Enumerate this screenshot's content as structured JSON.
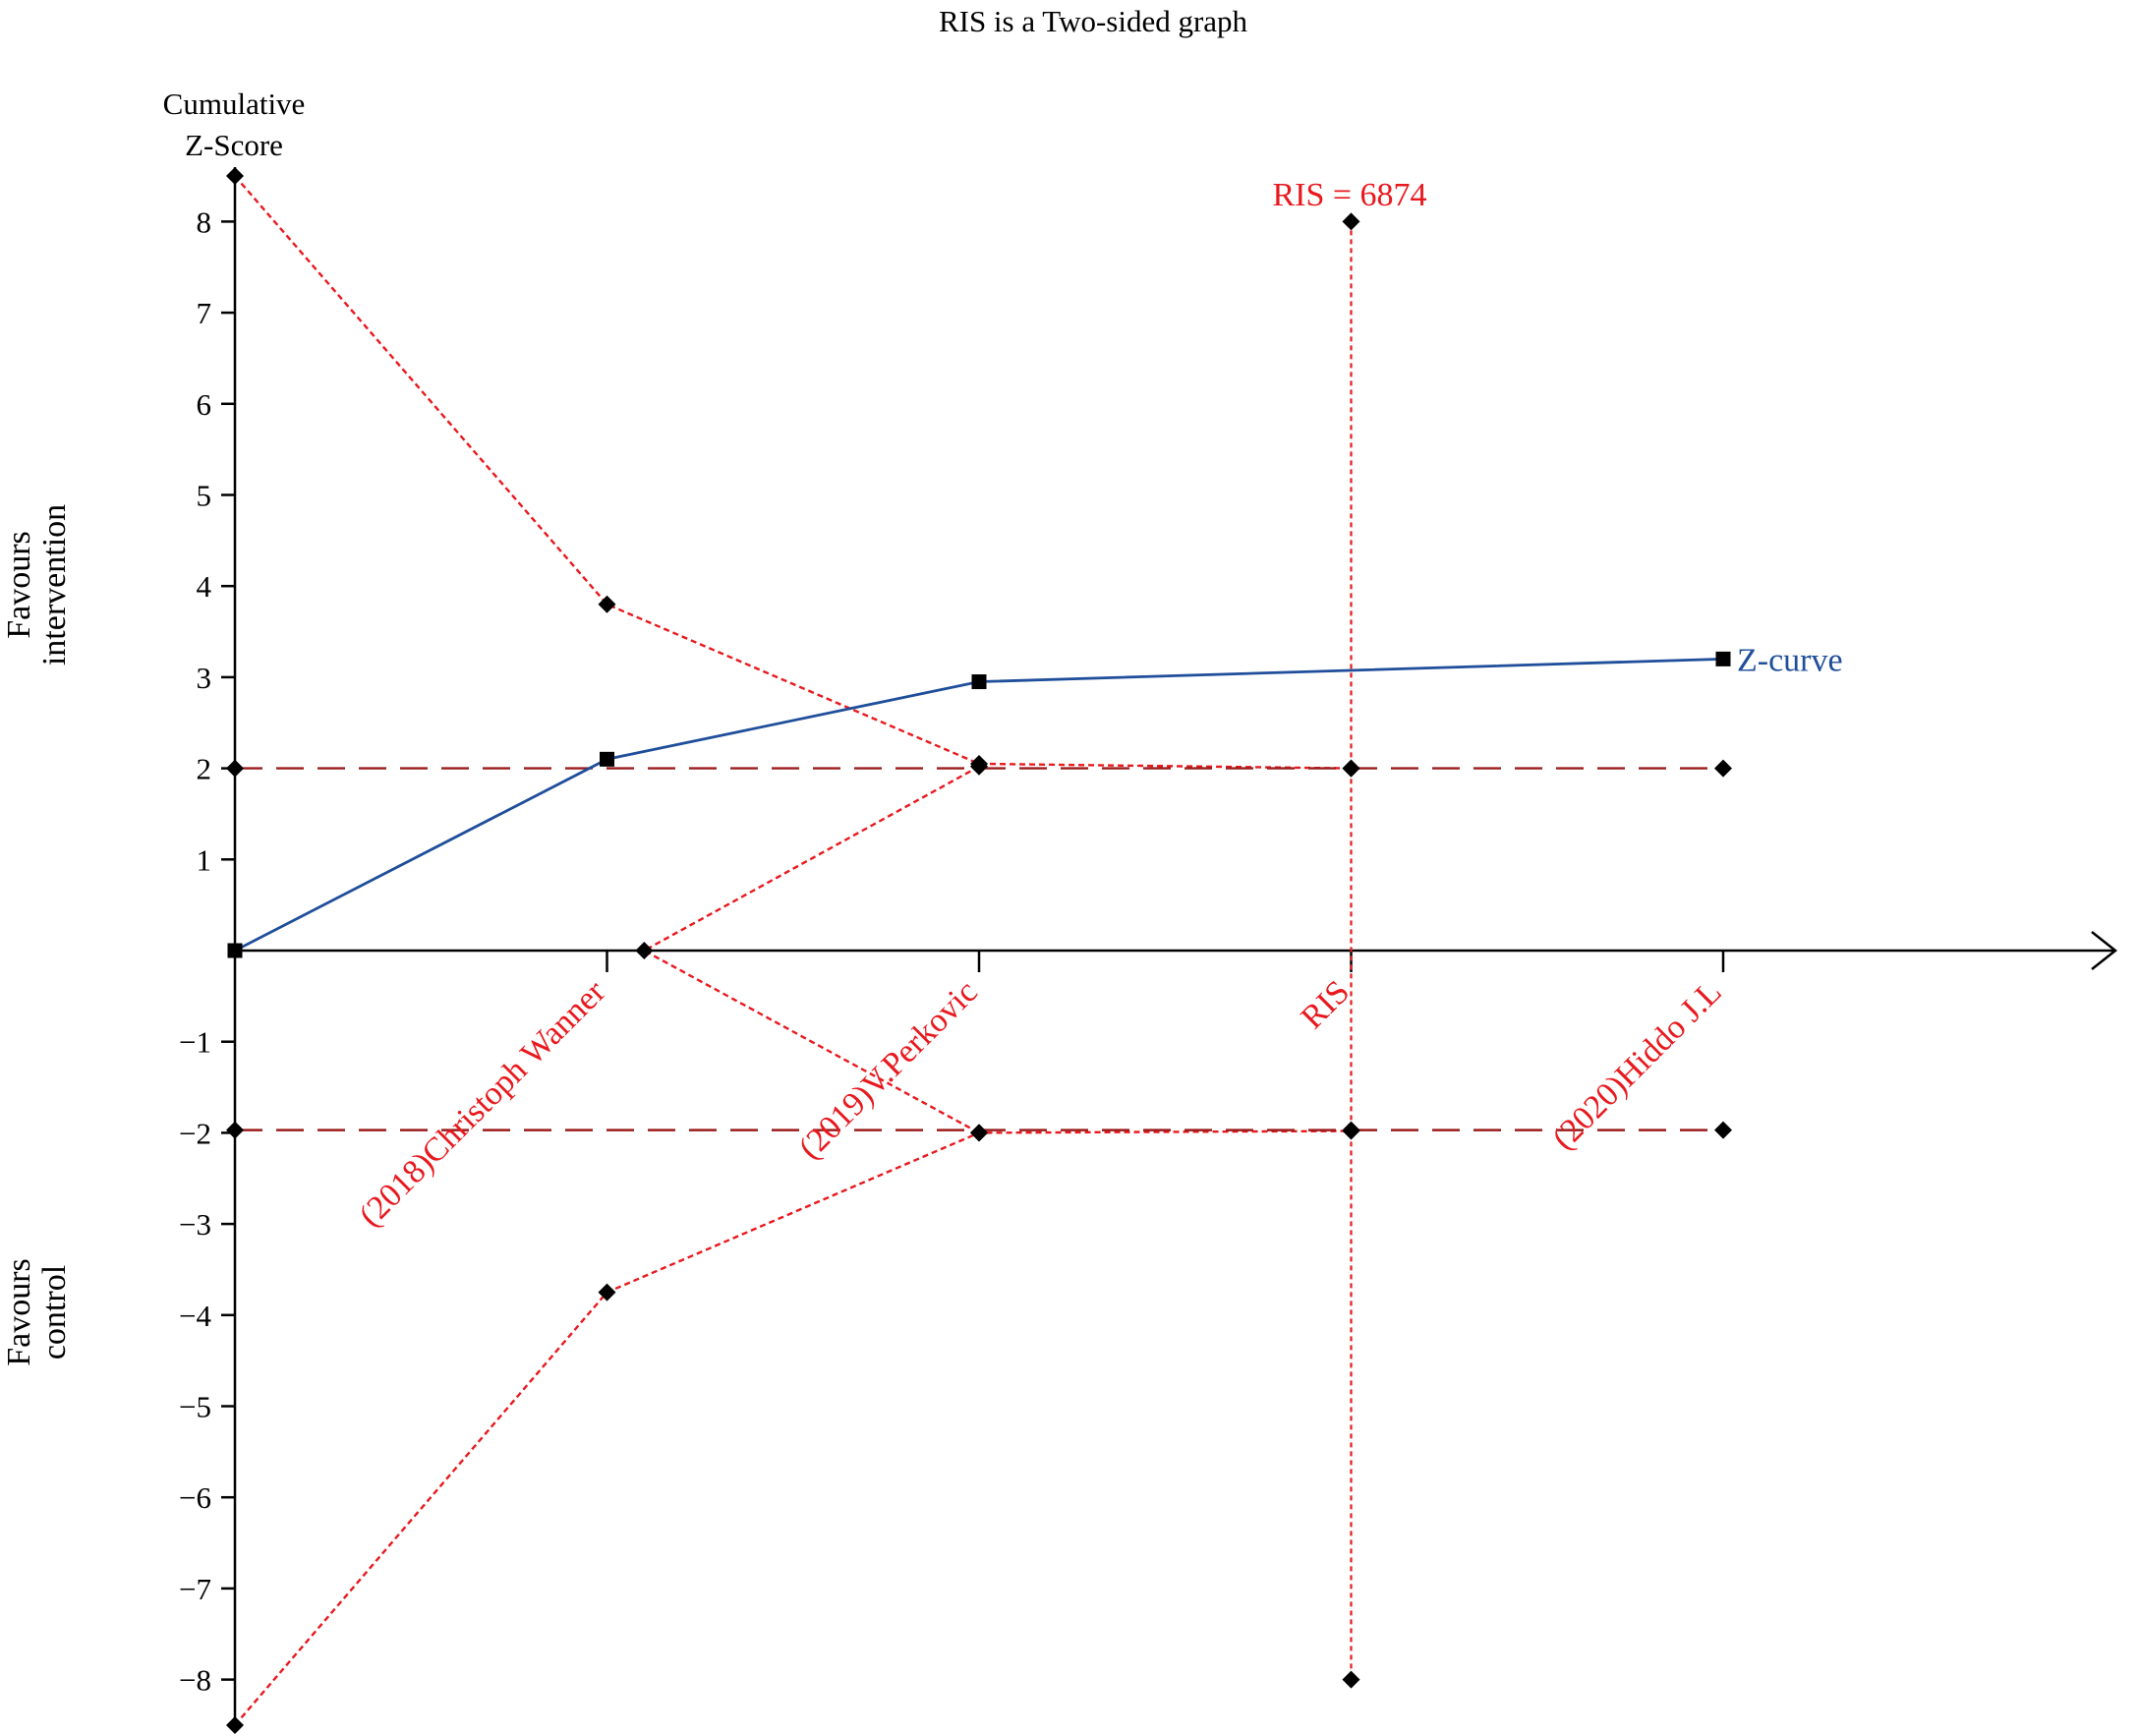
{
  "chart_data": {
    "type": "line",
    "title": "RIS is a Two-sided graph",
    "ylabel": [
      "Cumulative",
      "Z-Score"
    ],
    "side_labels": {
      "upper": [
        "Favours",
        "intervention"
      ],
      "lower": [
        "Favours",
        "control"
      ]
    },
    "ylim": [
      -8.5,
      8.5
    ],
    "y_ticks": [
      -8,
      -7,
      -6,
      -5,
      -4,
      -3,
      -2,
      -1,
      1,
      2,
      3,
      4,
      5,
      6,
      7,
      8
    ],
    "x_ticks": [
      {
        "label": "(2018)Christoph Wanner",
        "position": 1
      },
      {
        "label": "(2019)V.Perkovic",
        "position": 2
      },
      {
        "label": "RIS",
        "position": 3
      },
      {
        "label": "(2020)Hiddo J.L",
        "position": 4
      }
    ],
    "ris_label": "RIS = 6874",
    "ris_position": 3,
    "ris_line_range": [
      -8,
      8
    ],
    "series": [
      {
        "name": "Z-curve",
        "color": "#1f4e9a",
        "marker": "square",
        "points": [
          [
            0,
            0
          ],
          [
            1,
            2.1
          ],
          [
            2,
            2.95
          ],
          [
            4,
            3.2
          ]
        ]
      },
      {
        "color": "#e8191e",
        "style": "dotted",
        "marker": "diamond",
        "points": [
          [
            0,
            8.5
          ],
          [
            1,
            3.8
          ],
          [
            2,
            2.05
          ],
          [
            3,
            2.0
          ]
        ]
      },
      {
        "color": "#e8191e",
        "style": "dotted",
        "marker": "diamond",
        "points": [
          [
            0,
            -8.5
          ],
          [
            1,
            -3.75
          ],
          [
            2,
            -2.0
          ],
          [
            3,
            -1.98
          ]
        ]
      },
      {
        "color": "#e8191e",
        "style": "dotted",
        "marker": "diamond",
        "points": [
          [
            2,
            2.02
          ],
          [
            1.1,
            0
          ],
          [
            2,
            -2.0
          ]
        ]
      },
      {
        "color": "#9b1c1c",
        "style": "dashed",
        "marker": "diamond",
        "points": [
          [
            0,
            2.0
          ],
          [
            3,
            2.0
          ],
          [
            4,
            2.0
          ]
        ]
      },
      {
        "color": "#9b1c1c",
        "style": "dashed",
        "marker": "diamond",
        "points": [
          [
            0,
            -1.97
          ],
          [
            3,
            -1.97
          ],
          [
            4,
            -1.97
          ]
        ]
      }
    ],
    "ris_markers": [
      [
        3,
        8
      ],
      [
        3,
        -8
      ]
    ]
  }
}
